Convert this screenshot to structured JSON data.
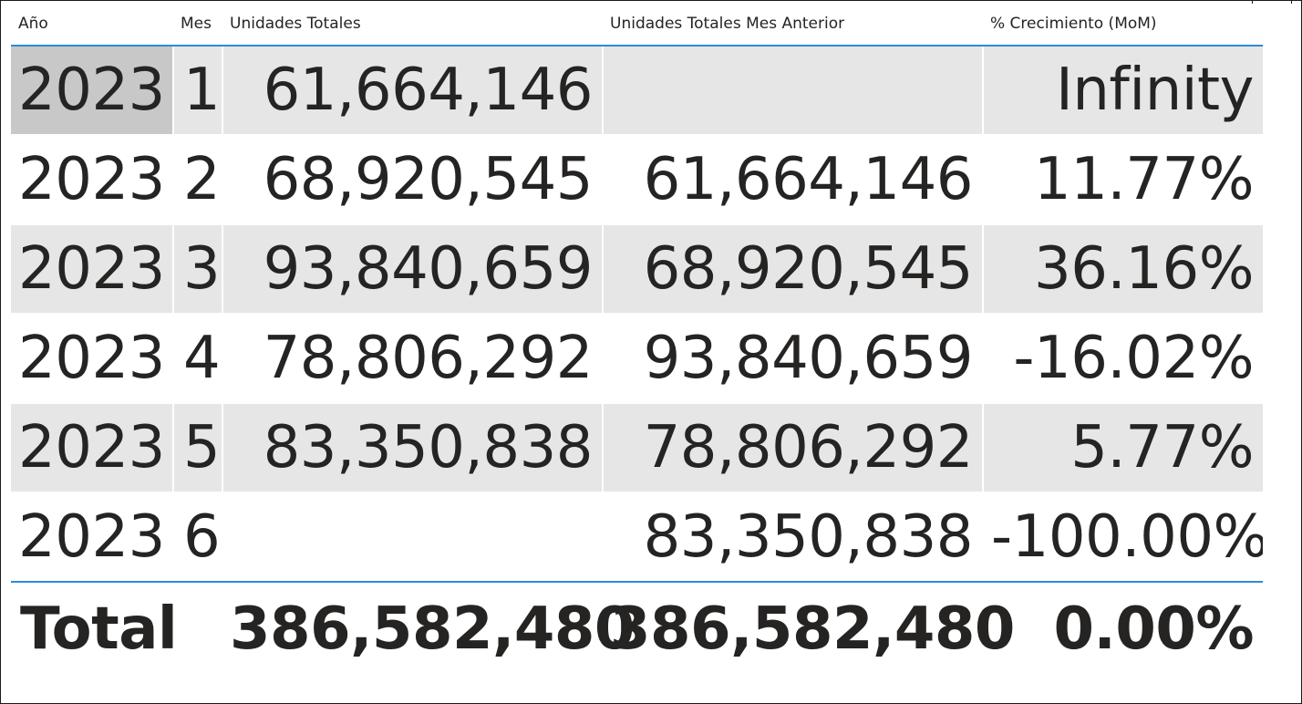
{
  "columns": {
    "year": "Año",
    "month": "Mes",
    "units_total": "Unidades Totales",
    "units_prev_month": "Unidades Totales Mes Anterior",
    "growth_mom": "% Crecimiento (MoM)"
  },
  "rows": [
    {
      "year": "2023",
      "month": "1",
      "units_total": "61,664,146",
      "units_prev_month": "",
      "growth_mom": "Infinity"
    },
    {
      "year": "2023",
      "month": "2",
      "units_total": "68,920,545",
      "units_prev_month": "61,664,146",
      "growth_mom": "11.77%"
    },
    {
      "year": "2023",
      "month": "3",
      "units_total": "93,840,659",
      "units_prev_month": "68,920,545",
      "growth_mom": "36.16%"
    },
    {
      "year": "2023",
      "month": "4",
      "units_total": "78,806,292",
      "units_prev_month": "93,840,659",
      "growth_mom": "-16.02%"
    },
    {
      "year": "2023",
      "month": "5",
      "units_total": "83,350,838",
      "units_prev_month": "78,806,292",
      "growth_mom": "5.77%"
    },
    {
      "year": "2023",
      "month": "6",
      "units_total": "",
      "units_prev_month": "83,350,838",
      "growth_mom": "-100.00%"
    }
  ],
  "totals": {
    "label": "Total",
    "units_total": "386,582,480",
    "units_prev_month": "386,582,480",
    "growth_mom": "0.00%"
  },
  "colors": {
    "accent_line": "#2d8ad9",
    "row_band": "#e6e6e6",
    "selected_cell": "#c8c8c8",
    "text": "#252423"
  }
}
